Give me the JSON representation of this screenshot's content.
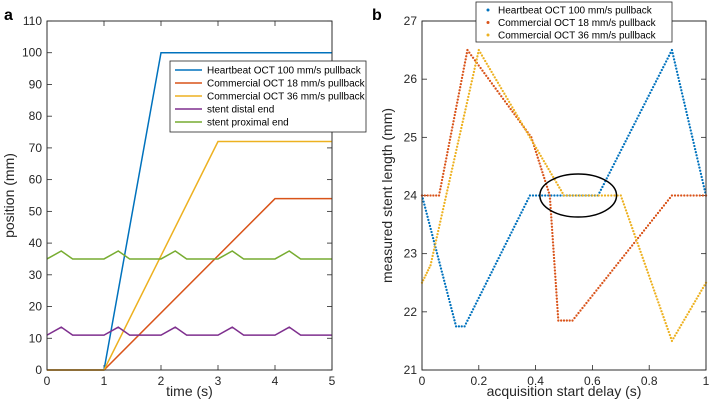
{
  "chart_data": [
    {
      "panel": "a",
      "type": "line",
      "xlabel": "time (s)",
      "ylabel": "position (mm)",
      "xlim": [
        0,
        5
      ],
      "ylim": [
        0,
        110
      ],
      "xticks": [
        0,
        1,
        2,
        3,
        4,
        5
      ],
      "yticks": [
        0,
        10,
        20,
        30,
        40,
        50,
        60,
        70,
        80,
        90,
        100,
        110
      ],
      "grid": false,
      "legend_position": "top-right",
      "series": [
        {
          "name": "Heartbeat OCT 100 mm/s pullback",
          "color": "#0072bd",
          "style": "solid",
          "x": [
            0,
            1,
            2,
            5
          ],
          "y": [
            0,
            0,
            100,
            100
          ]
        },
        {
          "name": "Commercial OCT 18 mm/s pullback",
          "color": "#d95319",
          "style": "solid",
          "x": [
            0,
            1,
            4,
            5
          ],
          "y": [
            0,
            0,
            54,
            54
          ]
        },
        {
          "name": "Commercial OCT 36 mm/s pullback",
          "color": "#edb120",
          "style": "solid",
          "x": [
            0,
            1,
            3,
            5
          ],
          "y": [
            0,
            0,
            72,
            72
          ]
        },
        {
          "name": "stent distal end",
          "color": "#7e2f8e",
          "style": "solid",
          "x": [
            0,
            0.25,
            0.45,
            0.7,
            1.0,
            1.25,
            1.45,
            1.7,
            2.0,
            2.25,
            2.45,
            2.7,
            3.0,
            3.25,
            3.45,
            3.7,
            4.0,
            4.25,
            4.45,
            4.7,
            5.0
          ],
          "y": [
            11,
            13.5,
            11,
            11,
            11,
            13.5,
            11,
            11,
            11,
            13.5,
            11,
            11,
            11,
            13.5,
            11,
            11,
            11,
            13.5,
            11,
            11,
            11
          ]
        },
        {
          "name": "stent proximal end",
          "color": "#77ac30",
          "style": "solid",
          "x": [
            0,
            0.25,
            0.45,
            0.7,
            1.0,
            1.25,
            1.45,
            1.7,
            2.0,
            2.25,
            2.45,
            2.7,
            3.0,
            3.25,
            3.45,
            3.7,
            4.0,
            4.25,
            4.45,
            4.7,
            5.0
          ],
          "y": [
            35,
            37.5,
            35,
            35,
            35,
            37.5,
            35,
            35,
            35,
            37.5,
            35,
            35,
            35,
            37.5,
            35,
            35,
            35,
            37.5,
            35,
            35,
            35
          ]
        }
      ]
    },
    {
      "panel": "b",
      "type": "scatter",
      "xlabel": "acquisition start delay (s)",
      "ylabel": "measured stent length (mm)",
      "xlim": [
        0,
        1
      ],
      "ylim": [
        21,
        27
      ],
      "xticks": [
        0,
        0.2,
        0.4,
        0.6,
        0.8,
        1
      ],
      "xtick_labels": [
        "0",
        "0.2",
        "0.4",
        "0.6",
        "0.8",
        "1"
      ],
      "yticks": [
        21,
        22,
        23,
        24,
        25,
        26,
        27
      ],
      "grid": false,
      "legend_position": "top",
      "annotation": {
        "shape": "ellipse",
        "cx": 0.55,
        "cy": 24.0,
        "rx": 0.135,
        "ry": 0.37,
        "color": "#000000"
      },
      "series": [
        {
          "name": "Heartbeat OCT 100 mm/s pullback",
          "color": "#0072bd",
          "marker": "dot",
          "x": [
            0,
            0.12,
            0.15,
            0.38,
            0.52,
            0.62,
            0.88,
            1.0
          ],
          "y": [
            24,
            21.75,
            21.75,
            24,
            24,
            24,
            26.5,
            24
          ]
        },
        {
          "name": "Commercial OCT 18 mm/s pullback",
          "color": "#d95319",
          "marker": "dot",
          "x": [
            0,
            0.06,
            0.16,
            0.385,
            0.45,
            0.48,
            0.53,
            0.88,
            1.0
          ],
          "y": [
            24,
            24,
            26.5,
            25,
            24,
            21.85,
            21.85,
            24,
            24
          ]
        },
        {
          "name": "Commercial OCT 36 mm/s pullback",
          "color": "#edb120",
          "marker": "dot",
          "x": [
            0,
            0.03,
            0.2,
            0.38,
            0.5,
            0.7,
            0.88,
            1.0
          ],
          "y": [
            22.5,
            22.8,
            26.5,
            25,
            24,
            24,
            21.5,
            22.5
          ]
        }
      ]
    }
  ],
  "colors": {
    "axis": "#262626",
    "heartbeat": "#0072bd",
    "commercial_18": "#d95319",
    "commercial_36": "#edb120",
    "distal": "#7e2f8e",
    "proximal": "#77ac30"
  }
}
